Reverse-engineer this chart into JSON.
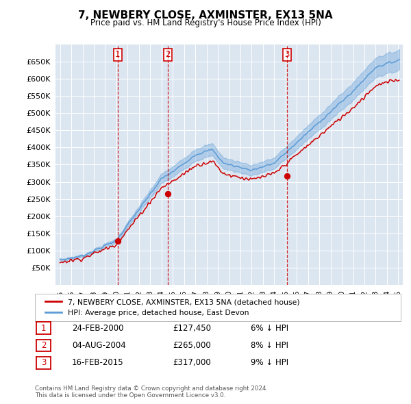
{
  "title": "7, NEWBERY CLOSE, AXMINSTER, EX13 5NA",
  "subtitle": "Price paid vs. HM Land Registry's House Price Index (HPI)",
  "legend_label_red": "7, NEWBERY CLOSE, AXMINSTER, EX13 5NA (detached house)",
  "legend_label_blue": "HPI: Average price, detached house, East Devon",
  "footer1": "Contains HM Land Registry data © Crown copyright and database right 2024.",
  "footer2": "This data is licensed under the Open Government Licence v3.0.",
  "transactions": [
    {
      "num": 1,
      "date": "24-FEB-2000",
      "price": "£127,450",
      "pct": "6% ↓ HPI",
      "year": 2000.12
    },
    {
      "num": 2,
      "date": "04-AUG-2004",
      "price": "£265,000",
      "pct": "8% ↓ HPI",
      "year": 2004.58
    },
    {
      "num": 3,
      "date": "16-FEB-2015",
      "price": "£317,000",
      "pct": "9% ↓ HPI",
      "year": 2015.12
    }
  ],
  "transaction_values": [
    127450,
    265000,
    317000
  ],
  "background_color": "#ffffff",
  "plot_bg_color": "#dce6f1",
  "grid_color": "#ffffff",
  "red_color": "#cc0000",
  "blue_color": "#5b9bd5",
  "vline_color": "#cc0000",
  "ylim": [
    0,
    700000
  ],
  "ytick_values": [
    50000,
    100000,
    150000,
    200000,
    250000,
    300000,
    350000,
    400000,
    450000,
    500000,
    550000,
    600000,
    650000
  ],
  "xlim_start": 1994.6,
  "xlim_end": 2025.4,
  "xtick_years": [
    1995,
    1996,
    1997,
    1998,
    1999,
    2000,
    2001,
    2002,
    2003,
    2004,
    2005,
    2006,
    2007,
    2008,
    2009,
    2010,
    2011,
    2012,
    2013,
    2014,
    2015,
    2016,
    2017,
    2018,
    2019,
    2020,
    2021,
    2022,
    2023,
    2024,
    2025
  ]
}
